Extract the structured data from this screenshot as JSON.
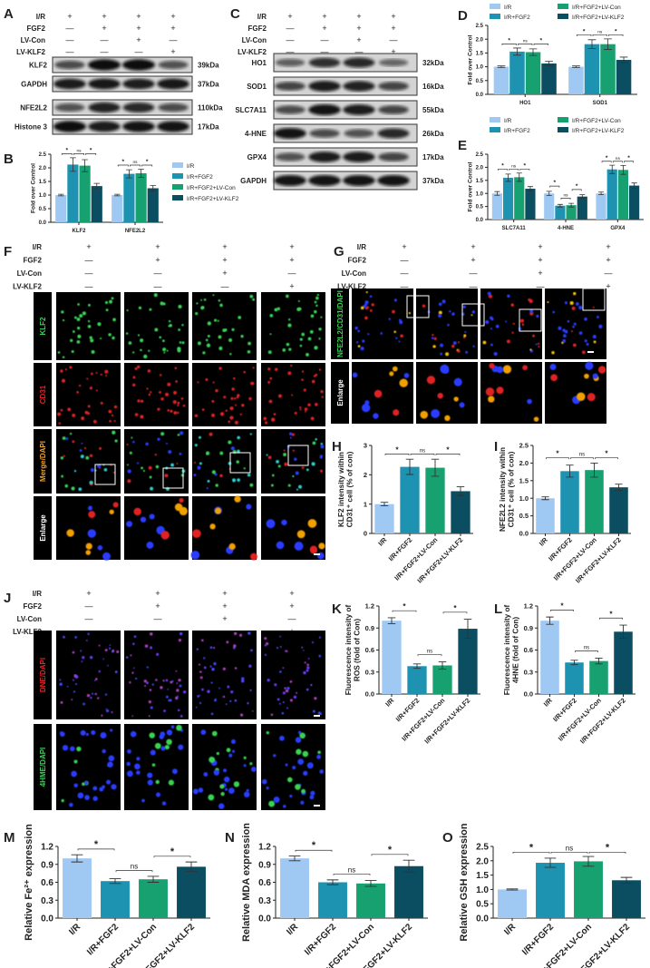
{
  "panel_letters": {
    "A": "A",
    "B": "B",
    "C": "C",
    "D": "D",
    "E": "E",
    "F": "F",
    "G": "G",
    "H": "H",
    "I": "I",
    "J": "J",
    "K": "K",
    "L": "L",
    "M": "M",
    "N": "N",
    "O": "O"
  },
  "conditions": [
    {
      "label": "I/R",
      "signs": [
        "+",
        "+",
        "+",
        "+"
      ]
    },
    {
      "label": "FGF2",
      "signs": [
        "—",
        "+",
        "+",
        "+"
      ]
    },
    {
      "label": "LV-Con",
      "signs": [
        "—",
        "—",
        "+",
        "—"
      ]
    },
    {
      "label": "LV-KLF2",
      "signs": [
        "—",
        "—",
        "—",
        "+"
      ]
    }
  ],
  "groups": [
    "I/R",
    "I/R+FGF2",
    "I/R+FGF2+LV-Con",
    "I/R+FGF2+LV-KLF2"
  ],
  "colors": [
    "#9fc8f3",
    "#1e93b1",
    "#17a070",
    "#0b4d61"
  ],
  "blot_A": [
    {
      "name": "KLF2",
      "kda": "39kDa"
    },
    {
      "name": "GAPDH",
      "kda": "37kDa"
    },
    {
      "name": "NFE2L2",
      "kda": "110kDa"
    },
    {
      "name": "Histone 3",
      "kda": "17kDa"
    }
  ],
  "blot_C": [
    {
      "name": "HO1",
      "kda": "32kDa"
    },
    {
      "name": "SOD1",
      "kda": "16kDa"
    },
    {
      "name": "SLC7A11",
      "kda": "55kDa"
    },
    {
      "name": "4-HNE",
      "kda": "26kDa"
    },
    {
      "name": "GPX4",
      "kda": "17kDa"
    },
    {
      "name": "GAPDH",
      "kda": "37kDa"
    }
  ],
  "image_labels": {
    "F": [
      "KLF2",
      "CD31",
      "Merge/DAPI",
      "Enlarge"
    ],
    "G": [
      "NFE2L2/CD31/DAPI",
      "Enlarge"
    ],
    "J": [
      "DNE/DAPI",
      "4HME/DAPI"
    ]
  },
  "chart_data": [
    {
      "panel": "B",
      "type": "bar",
      "ylabel": [
        "Fold over Control"
      ],
      "ylim": [
        0,
        2.5
      ],
      "yticks": [
        "0.0",
        "0.5",
        "1.0",
        "1.5",
        "2.0",
        "2.5"
      ],
      "legend": "right",
      "categories": [
        "KLF2",
        "NFE2L2"
      ],
      "series": [
        {
          "name": "I/R",
          "values": [
            1.0,
            1.0
          ],
          "errors": [
            0.03,
            0.03
          ]
        },
        {
          "name": "I/R+FGF2",
          "values": [
            2.12,
            1.78
          ],
          "errors": [
            0.25,
            0.15
          ]
        },
        {
          "name": "I/R+FGF2+LV-Con",
          "values": [
            2.08,
            1.8
          ],
          "errors": [
            0.22,
            0.15
          ]
        },
        {
          "name": "I/R+FGF2+LV-KLF2",
          "values": [
            1.33,
            1.25
          ],
          "errors": [
            0.1,
            0.1
          ]
        }
      ],
      "significance": [
        {
          "category": 0,
          "style": "row",
          "pairs": [
            [
              0,
              1,
              "*"
            ],
            [
              1,
              2,
              "ns"
            ],
            [
              2,
              3,
              "*"
            ]
          ]
        },
        {
          "category": 1,
          "style": "row",
          "pairs": [
            [
              0,
              1,
              "*"
            ],
            [
              1,
              2,
              "ns"
            ],
            [
              2,
              3,
              "*"
            ]
          ]
        }
      ]
    },
    {
      "panel": "D",
      "type": "bar",
      "ylabel": [
        "Fold over Control"
      ],
      "ylim": [
        0,
        2.5
      ],
      "yticks": [
        "0.0",
        "0.5",
        "1.0",
        "1.5",
        "2.0",
        "2.5"
      ],
      "legend": "top",
      "categories": [
        "HO1",
        "SOD1"
      ],
      "series": [
        {
          "name": "I/R",
          "values": [
            1.0,
            1.0
          ],
          "errors": [
            0.03,
            0.03
          ]
        },
        {
          "name": "I/R+FGF2",
          "values": [
            1.55,
            1.82
          ],
          "errors": [
            0.13,
            0.16
          ]
        },
        {
          "name": "I/R+FGF2+LV-Con",
          "values": [
            1.53,
            1.82
          ],
          "errors": [
            0.12,
            0.19
          ]
        },
        {
          "name": "I/R+FGF2+LV-KLF2",
          "values": [
            1.12,
            1.25
          ],
          "errors": [
            0.08,
            0.1
          ]
        }
      ],
      "significance": [
        {
          "category": 0,
          "style": "row",
          "pairs": [
            [
              0,
              1,
              "*"
            ],
            [
              1,
              2,
              "ns"
            ],
            [
              2,
              3,
              "*"
            ]
          ]
        },
        {
          "category": 1,
          "style": "row",
          "pairs": [
            [
              0,
              1,
              "*"
            ],
            [
              1,
              2,
              "ns"
            ],
            [
              2,
              3,
              "*"
            ]
          ]
        }
      ]
    },
    {
      "panel": "E",
      "type": "bar",
      "ylabel": [
        "Fold over Control"
      ],
      "ylim": [
        0,
        2.5
      ],
      "yticks": [
        "0.0",
        "0.5",
        "1.0",
        "1.5",
        "2.0",
        "2.5"
      ],
      "legend": "top",
      "categories": [
        "SLC7A11",
        "4-HNE",
        "GPX4"
      ],
      "series": [
        {
          "name": "I/R",
          "values": [
            1.0,
            1.0,
            1.0
          ],
          "errors": [
            0.07,
            0.08,
            0.05
          ]
        },
        {
          "name": "I/R+FGF2",
          "values": [
            1.6,
            0.53,
            1.92
          ],
          "errors": [
            0.14,
            0.05,
            0.16
          ]
        },
        {
          "name": "I/R+FGF2+LV-Con",
          "values": [
            1.62,
            0.55,
            1.9
          ],
          "errors": [
            0.16,
            0.07,
            0.17
          ]
        },
        {
          "name": "I/R+FGF2+LV-KLF2",
          "values": [
            1.18,
            0.88,
            1.3
          ],
          "errors": [
            0.08,
            0.07,
            0.1
          ]
        }
      ],
      "significance": [
        {
          "category": 0,
          "style": "row",
          "pairs": [
            [
              0,
              1,
              "*"
            ],
            [
              1,
              2,
              "ns"
            ],
            [
              2,
              3,
              "*"
            ]
          ]
        },
        {
          "category": 1,
          "style": "local",
          "pairs": [
            [
              0,
              1,
              "*"
            ],
            [
              1,
              2,
              "ns"
            ],
            [
              2,
              3,
              "*"
            ]
          ]
        },
        {
          "category": 2,
          "style": "row",
          "pairs": [
            [
              0,
              1,
              "*"
            ],
            [
              1,
              2,
              "ns"
            ],
            [
              2,
              3,
              "*"
            ]
          ]
        }
      ]
    },
    {
      "panel": "H",
      "type": "bar",
      "ylabel": [
        "KLF2 intensity within",
        "CD31⁺ cell (% of con)"
      ],
      "ylim": [
        0,
        3
      ],
      "yticks": [
        "0",
        "1",
        "2",
        "3"
      ],
      "categories": [
        "I/R",
        "I/R+FGF2",
        "I/R+FGF2+LV-Con",
        "I/R+FGF2+LV-KLF2"
      ],
      "values": [
        1.0,
        2.27,
        2.24,
        1.44
      ],
      "errors": [
        0.06,
        0.26,
        0.29,
        0.15
      ],
      "significance": [
        {
          "style": "row",
          "pairs": [
            [
              0,
              1,
              "*"
            ],
            [
              1,
              2,
              "ns"
            ],
            [
              2,
              3,
              "*"
            ]
          ]
        }
      ]
    },
    {
      "panel": "I",
      "type": "bar",
      "ylabel": [
        "NFE2L2 intensity within",
        "CD31⁺ cell (% of con)"
      ],
      "ylim": [
        0,
        2.5
      ],
      "yticks": [
        "0.0",
        "0.5",
        "1.0",
        "1.5",
        "2.0",
        "2.5"
      ],
      "categories": [
        "I/R",
        "I/R+FGF2",
        "I/R+FGF2+LV-Con",
        "I/R+FGF2+LV-KLF2"
      ],
      "values": [
        1.0,
        1.77,
        1.8,
        1.31
      ],
      "errors": [
        0.04,
        0.17,
        0.2,
        0.09
      ],
      "significance": [
        {
          "style": "row",
          "pairs": [
            [
              0,
              1,
              "*"
            ],
            [
              1,
              2,
              "ns"
            ],
            [
              2,
              3,
              "*"
            ]
          ]
        }
      ]
    },
    {
      "panel": "K",
      "type": "bar",
      "ylabel": [
        "Fluorescence intensity of",
        "ROS (fold of Con)"
      ],
      "ylim": [
        0,
        1.2
      ],
      "yticks": [
        "0.0",
        "0.3",
        "0.6",
        "0.9",
        "1.2"
      ],
      "categories": [
        "I/R",
        "I/R+FGF2",
        "I/R+FGF2+LV-Con",
        "I/R+FGF2+LV-KLF2"
      ],
      "values": [
        1.0,
        0.38,
        0.39,
        0.89
      ],
      "errors": [
        0.04,
        0.03,
        0.05,
        0.13
      ],
      "significance": [
        {
          "style": "local",
          "pairs": [
            [
              0,
              1,
              "*"
            ],
            [
              1,
              2,
              "ns"
            ],
            [
              2,
              3,
              "*"
            ]
          ]
        }
      ]
    },
    {
      "panel": "L",
      "type": "bar",
      "ylabel": [
        "Fluorescence intensity of",
        "4HNE (fold of Con)"
      ],
      "ylim": [
        0,
        1.2
      ],
      "yticks": [
        "0.0",
        "0.3",
        "0.6",
        "0.9",
        "1.2"
      ],
      "categories": [
        "I/R",
        "I/R+FGF2",
        "I/R+FGF2+LV-Con",
        "I/R+FGF2+LV-KLF2"
      ],
      "values": [
        1.0,
        0.43,
        0.45,
        0.85
      ],
      "errors": [
        0.05,
        0.03,
        0.04,
        0.09
      ],
      "significance": [
        {
          "style": "local",
          "pairs": [
            [
              0,
              1,
              "*"
            ],
            [
              1,
              2,
              "ns"
            ],
            [
              2,
              3,
              "*"
            ]
          ]
        }
      ]
    },
    {
      "panel": "M",
      "type": "bar",
      "ylabel": [
        "Relative Fe²⁺ expression"
      ],
      "ylim": [
        0,
        1.2
      ],
      "yticks": [
        "0.0",
        "0.3",
        "0.6",
        "0.9",
        "1.2"
      ],
      "categories": [
        "I/R",
        "I/R+FGF2",
        "I/R+FGF2+LV-Con",
        "I/R+FGF2+LV-KLF2"
      ],
      "values": [
        1.0,
        0.62,
        0.65,
        0.86
      ],
      "errors": [
        0.06,
        0.04,
        0.05,
        0.08
      ],
      "significance": [
        {
          "style": "local",
          "pairs": [
            [
              0,
              1,
              "*"
            ],
            [
              1,
              2,
              "ns"
            ],
            [
              2,
              3,
              "*"
            ]
          ]
        }
      ]
    },
    {
      "panel": "N",
      "type": "bar",
      "ylabel": [
        "Relative MDA expression"
      ],
      "ylim": [
        0,
        1.2
      ],
      "yticks": [
        "0.0",
        "0.3",
        "0.6",
        "0.9",
        "1.2"
      ],
      "categories": [
        "I/R",
        "I/R+FGF2",
        "I/R+FGF2+LV-Con",
        "I/R+FGF2+LV-KLF2"
      ],
      "values": [
        1.0,
        0.6,
        0.58,
        0.87
      ],
      "errors": [
        0.04,
        0.04,
        0.05,
        0.1
      ],
      "significance": [
        {
          "style": "local",
          "pairs": [
            [
              0,
              1,
              "*"
            ],
            [
              1,
              2,
              "ns"
            ],
            [
              2,
              3,
              "*"
            ]
          ]
        }
      ]
    },
    {
      "panel": "O",
      "type": "bar",
      "ylabel": [
        "Relative GSH expression"
      ],
      "ylim": [
        0,
        2.5
      ],
      "yticks": [
        "0.0",
        "0.5",
        "1.0",
        "1.5",
        "2.0",
        "2.5"
      ],
      "categories": [
        "I/R",
        "I/R+FGF2",
        "I/R+FGF2+LV-Con",
        "I/R+FGF2+LV-KLF2"
      ],
      "values": [
        1.0,
        1.93,
        1.98,
        1.32
      ],
      "errors": [
        0.02,
        0.16,
        0.17,
        0.1
      ],
      "significance": [
        {
          "style": "row",
          "pairs": [
            [
              0,
              1,
              "*"
            ],
            [
              1,
              2,
              "ns"
            ],
            [
              2,
              3,
              "*"
            ]
          ]
        }
      ]
    }
  ]
}
